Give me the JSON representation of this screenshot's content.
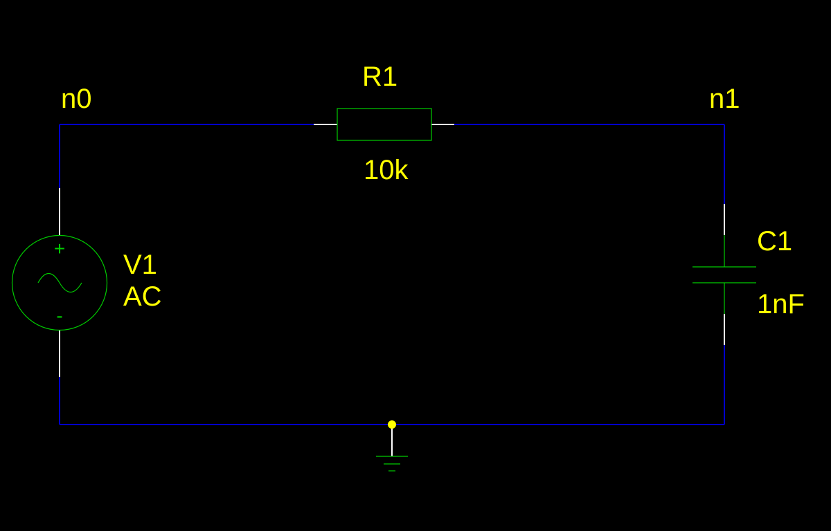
{
  "schematic": {
    "nodes": {
      "n0": "n0",
      "n1": "n1"
    },
    "resistor": {
      "ref": "R1",
      "value": "10k"
    },
    "capacitor": {
      "ref": "C1",
      "value": "1nF"
    },
    "source": {
      "ref": "V1",
      "type": "AC",
      "plus": "+",
      "minus": "-"
    },
    "colors": {
      "background": "#000000",
      "wire": "#0000cc",
      "lead": "#ffffff",
      "component": "#00cc00",
      "label": "#ffff00",
      "junction": "#ffff00"
    }
  }
}
